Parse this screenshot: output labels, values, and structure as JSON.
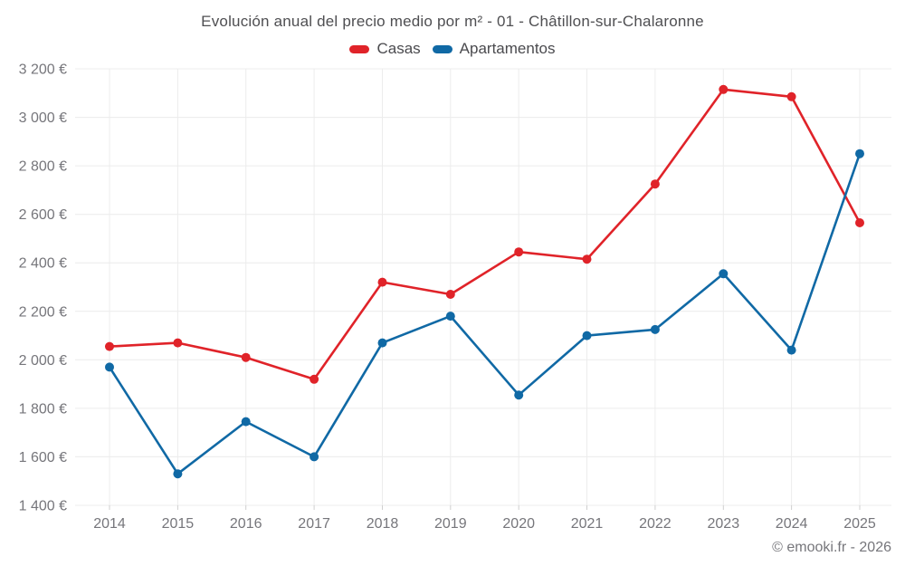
{
  "title": "Evolución anual del precio medio por m² - 01 - Châtillon-sur-Chalaronne",
  "footer": {
    "copyright": "© emooki.fr - 2026"
  },
  "chart_data": {
    "type": "line",
    "title": "Evolución anual del precio medio por m² - 01 - Châtillon-sur-Chalaronne",
    "categories": [
      "2014",
      "2015",
      "2016",
      "2017",
      "2018",
      "2019",
      "2020",
      "2021",
      "2022",
      "2023",
      "2024",
      "2025"
    ],
    "series": [
      {
        "name": "Casas",
        "color": "#e02329",
        "values": [
          2055,
          2070,
          2010,
          1920,
          2320,
          2270,
          2445,
          2415,
          2725,
          3115,
          3085,
          2565
        ]
      },
      {
        "name": "Apartamentos",
        "color": "#1069a5",
        "values": [
          1970,
          1530,
          1745,
          1600,
          2070,
          2180,
          1855,
          2100,
          2125,
          2355,
          2040,
          2850
        ]
      }
    ],
    "xlabel": "",
    "ylabel": "",
    "ylim": [
      1400,
      3200
    ],
    "ytick_step": 200,
    "currency": "€",
    "ytick_format": "1 400 €",
    "grid": true,
    "grid_color": "#ececec",
    "tick_color": "#cfcfcf",
    "legend_position": "top"
  }
}
